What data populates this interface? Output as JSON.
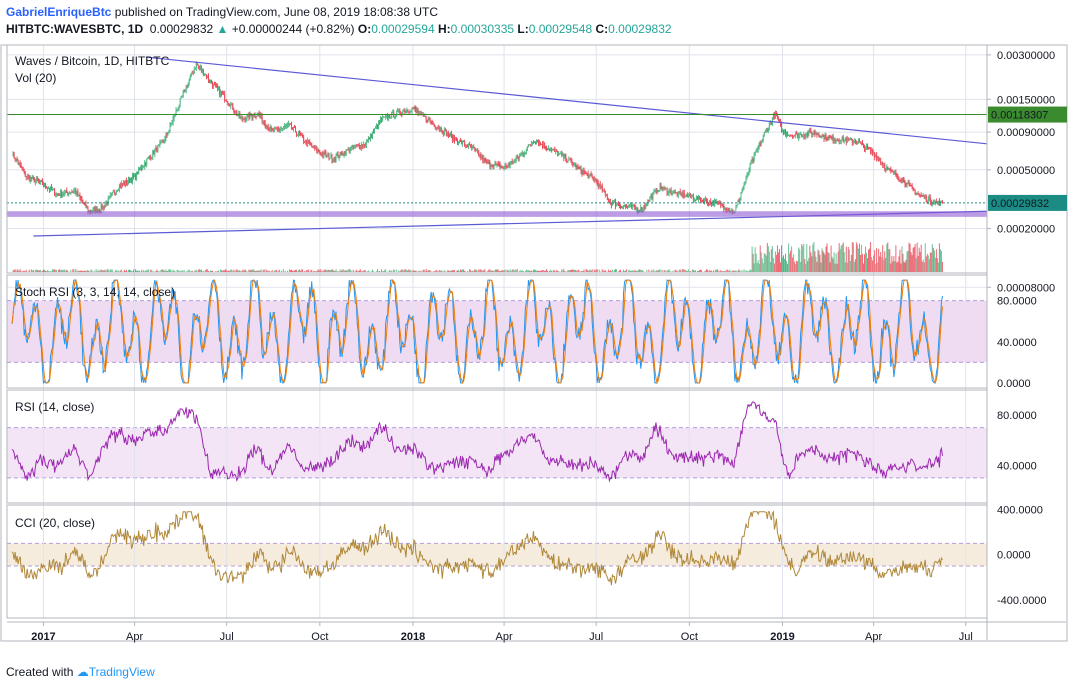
{
  "header": {
    "author": "GabrielEnriqueBtc",
    "published": "published on TradingView.com, June 08, 2019 18:08:38 UTC",
    "symbol": "HITBTC:WAVESBTC, 1D",
    "price": "0.00029832",
    "change": "+0.00000244 (+0.82%)",
    "o_label": "O:",
    "o_value": "0.00029594",
    "h_label": "H:",
    "h_value": "0.00030335",
    "l_label": "L:",
    "l_value": "0.00029548",
    "c_label": "C:",
    "c_value": "0.00029832"
  },
  "footer": {
    "created_with": "Created with",
    "brand": "TradingView"
  },
  "colors": {
    "grid": "#e0e3eb",
    "border": "#b2b5be",
    "candle_up": "#53b987",
    "candle_down": "#eb4d5c",
    "trendline": "#5b5bd6",
    "support_band": "#8e5ad4",
    "h_green": "#3a8a2e",
    "dotted": "#1b8c84",
    "stoch_k": "#2196f3",
    "stoch_d": "#f57c00",
    "stoch_band": "#e1bee7",
    "rsi_line": "#9c27b0",
    "rsi_band": "#f3e5f5",
    "cci_line": "#b0883a",
    "cci_band": "#f5ecdd"
  },
  "chart_data": [
    {
      "type": "candlestick",
      "title": "Waves / Bitcoin, 1D, HITBTC",
      "subtitle": "Vol (20)",
      "scale": "log",
      "price_ticks": [
        "0.00300000",
        "0.00150000",
        "0.00090000",
        "0.00050000",
        "0.00020000",
        "0.00008000"
      ],
      "price_tick_values": [
        0.003,
        0.0015,
        0.0009,
        0.0005,
        0.0002,
        8e-05
      ],
      "x_ticks": [
        "2017",
        "Apr",
        "Jul",
        "Oct",
        "2018",
        "Apr",
        "Jul",
        "Oct",
        "2019",
        "Apr",
        "Jul"
      ],
      "x_tick_dates": [
        "2017-01-01",
        "2017-04-01",
        "2017-07-01",
        "2017-10-01",
        "2018-01-01",
        "2018-04-01",
        "2018-07-01",
        "2018-10-01",
        "2019-01-01",
        "2019-04-01",
        "2019-07-01"
      ],
      "date_range": [
        "2016-11-26",
        "2019-07-22"
      ],
      "ylim": [
        0.0001,
        0.0035
      ],
      "green_level_label": "0.00118307",
      "green_level": 0.00118307,
      "last_price_label": "0.00029832",
      "last_price": 0.00029832,
      "series": [
        {
          "name": "close",
          "x": [
            "2016-12-01",
            "2016-12-15",
            "2017-01-01",
            "2017-01-15",
            "2017-02-01",
            "2017-02-15",
            "2017-03-01",
            "2017-03-15",
            "2017-04-01",
            "2017-04-15",
            "2017-05-01",
            "2017-05-15",
            "2017-06-01",
            "2017-06-10",
            "2017-06-20",
            "2017-07-01",
            "2017-07-15",
            "2017-08-01",
            "2017-08-15",
            "2017-09-01",
            "2017-09-15",
            "2017-10-01",
            "2017-10-15",
            "2017-11-01",
            "2017-11-15",
            "2017-12-01",
            "2017-12-15",
            "2018-01-01",
            "2018-01-15",
            "2018-02-01",
            "2018-02-15",
            "2018-03-01",
            "2018-03-15",
            "2018-04-01",
            "2018-04-15",
            "2018-05-01",
            "2018-05-15",
            "2018-06-01",
            "2018-06-15",
            "2018-07-01",
            "2018-07-15",
            "2018-08-01",
            "2018-08-15",
            "2018-09-01",
            "2018-09-15",
            "2018-10-01",
            "2018-10-15",
            "2018-11-01",
            "2018-11-15",
            "2018-12-01",
            "2018-12-15",
            "2018-12-25",
            "2019-01-01",
            "2019-01-15",
            "2019-02-01",
            "2019-02-15",
            "2019-03-01",
            "2019-03-15",
            "2019-04-01",
            "2019-04-15",
            "2019-05-01",
            "2019-05-15",
            "2019-06-01",
            "2019-06-08"
          ],
          "values": [
            0.00065,
            0.00045,
            0.0004,
            0.00034,
            0.00036,
            0.00026,
            0.00028,
            0.00038,
            0.00045,
            0.0006,
            0.0008,
            0.0014,
            0.0026,
            0.0022,
            0.0018,
            0.0015,
            0.0011,
            0.0012,
            0.0009,
            0.001,
            0.0008,
            0.00065,
            0.0006,
            0.0007,
            0.00075,
            0.0011,
            0.0012,
            0.0013,
            0.0011,
            0.0009,
            0.00078,
            0.0007,
            0.00055,
            0.00052,
            0.0006,
            0.0008,
            0.0007,
            0.0006,
            0.0005,
            0.00042,
            0.0003,
            0.00028,
            0.00027,
            0.00038,
            0.00035,
            0.00033,
            0.00031,
            0.00029,
            0.00026,
            0.00055,
            0.0009,
            0.0012,
            0.0009,
            0.00085,
            0.0009,
            0.00082,
            0.0008,
            0.00078,
            0.00065,
            0.0005,
            0.00042,
            0.00034,
            0.0003,
            0.000298
          ]
        }
      ]
    },
    {
      "type": "line",
      "title": "Stoch RSI (3, 3, 14, 14, close)",
      "y_ticks": [
        "80.0000",
        "40.0000",
        "0.0000"
      ],
      "y_tick_values": [
        80,
        40,
        0
      ],
      "band": [
        20,
        80
      ],
      "ylim": [
        -5,
        105
      ],
      "series": [
        {
          "name": "K"
        },
        {
          "name": "D"
        }
      ]
    },
    {
      "type": "line",
      "title": "RSI (14, close)",
      "y_ticks": [
        "80.0000",
        "40.0000"
      ],
      "y_tick_values": [
        80,
        40
      ],
      "band": [
        30,
        70
      ],
      "ylim": [
        10,
        100
      ],
      "series": [
        {
          "name": "RSI"
        }
      ]
    },
    {
      "type": "line",
      "title": "CCI (20, close)",
      "y_ticks": [
        "400.0000",
        "0.0000",
        "-400.0000"
      ],
      "y_tick_values": [
        400,
        0,
        -400
      ],
      "band": [
        -100,
        100
      ],
      "ylim": [
        -560,
        440
      ],
      "series": [
        {
          "name": "CCI"
        }
      ]
    }
  ]
}
